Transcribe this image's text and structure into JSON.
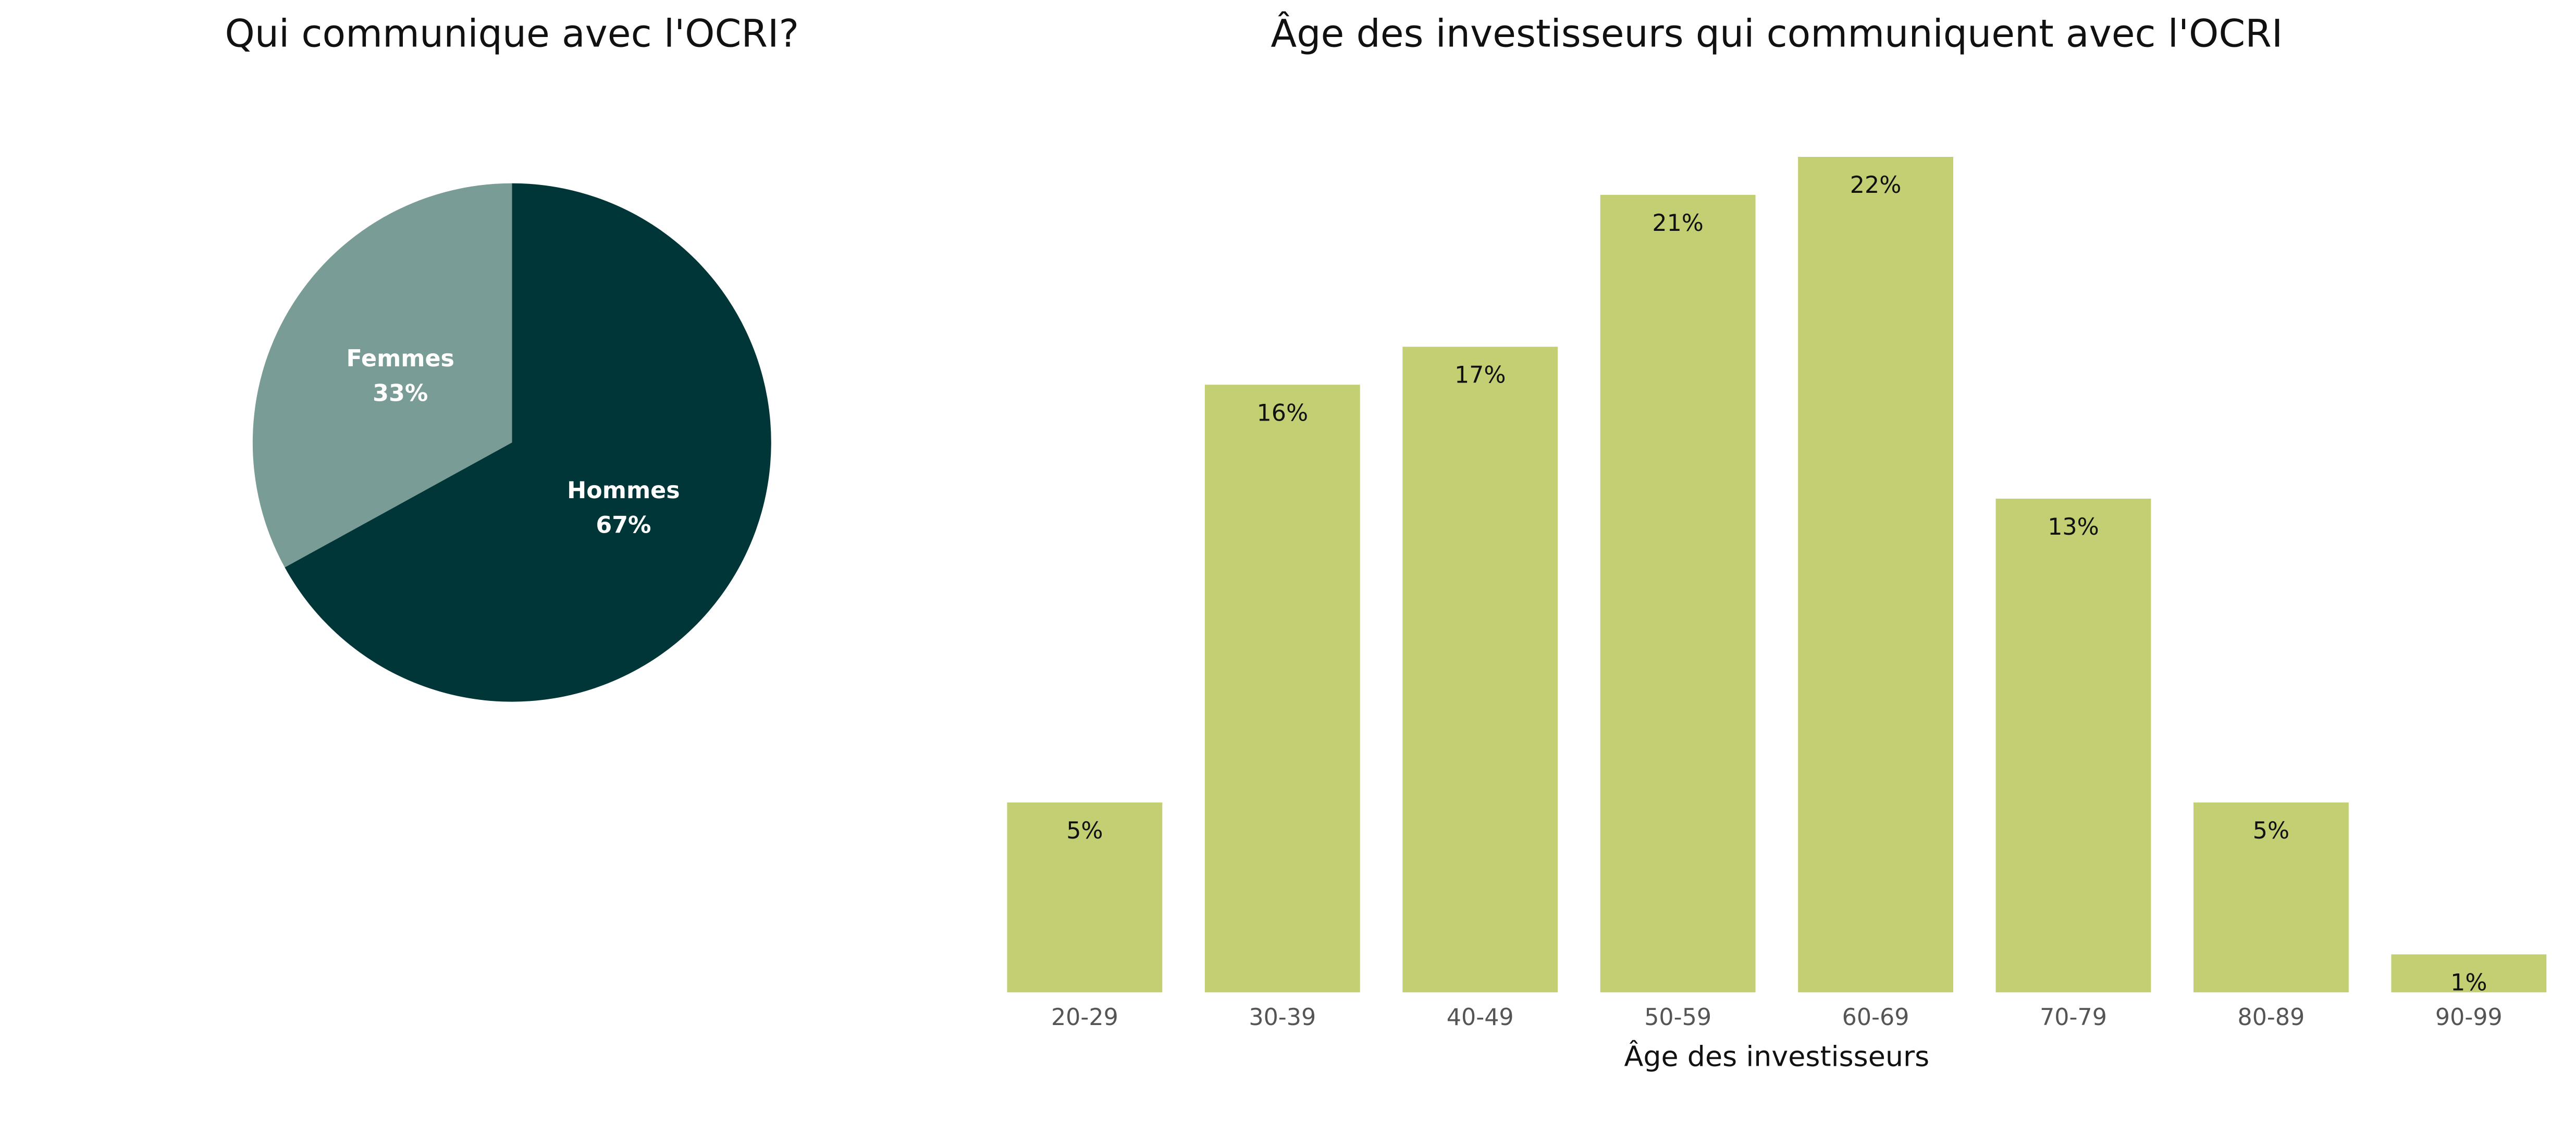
{
  "chart_data": [
    {
      "type": "pie",
      "title": "Qui communique avec l'OCRI?",
      "categories": [
        "Hommes",
        "Femmes"
      ],
      "values": [
        67,
        33
      ],
      "value_labels": [
        "67%",
        "33%"
      ],
      "colors": [
        "#003638",
        "#7a9c96"
      ]
    },
    {
      "type": "bar",
      "title": "Âge des investisseurs qui communiquent avec l'OCRI",
      "xlabel": "Âge des investisseurs",
      "categories": [
        "20-29",
        "30-39",
        "40-49",
        "50-59",
        "60-69",
        "70-79",
        "80-89",
        "90-99"
      ],
      "values": [
        5,
        16,
        17,
        21,
        22,
        13,
        5,
        1
      ],
      "value_labels": [
        "5%",
        "16%",
        "17%",
        "21%",
        "22%",
        "13%",
        "5%",
        "1%"
      ],
      "color": "#c3cf72"
    }
  ]
}
